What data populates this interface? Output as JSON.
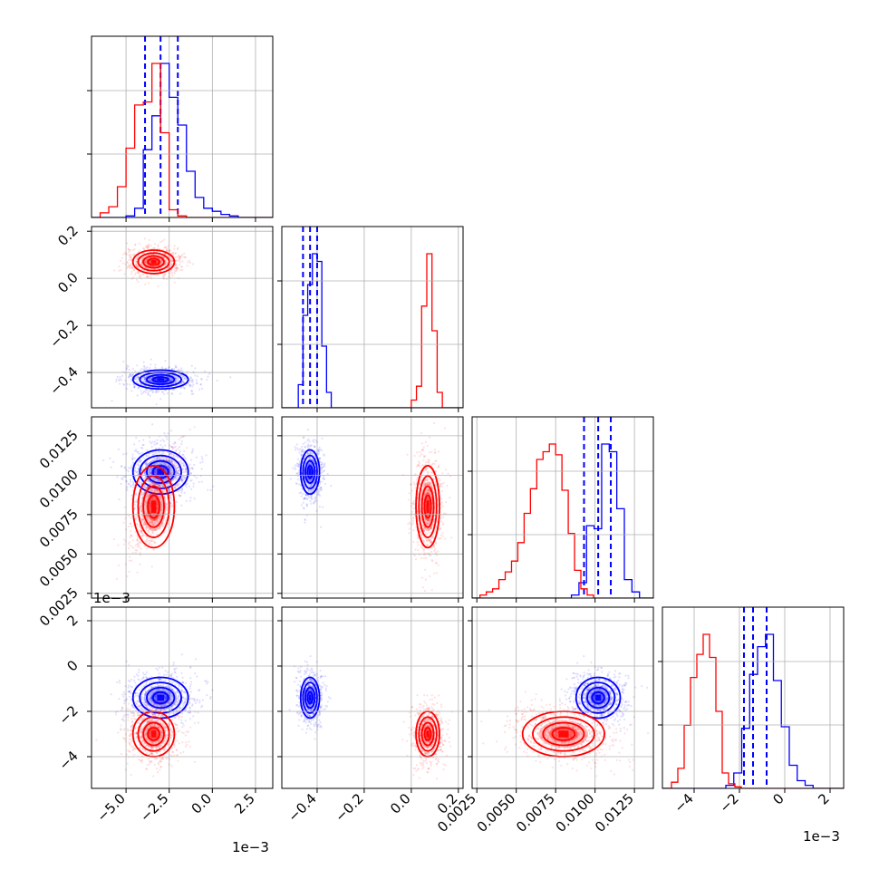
{
  "chart_data": {
    "type": "corner",
    "grid": true,
    "dimensions": [
      "param_1",
      "param_2",
      "param_3",
      "param_4"
    ],
    "offset_labels": [
      "1e−3",
      "1e−3"
    ],
    "axes": {
      "param_1": {
        "lim": [
          -7.0,
          3.5
        ],
        "ticks": [
          -5.0,
          -2.5,
          0.0,
          2.5
        ],
        "tick_labels": [
          "−5.0",
          "−2.5",
          "0.0",
          "2.5"
        ],
        "offset": "1e−3"
      },
      "param_2": {
        "lim": [
          -0.55,
          0.22
        ],
        "ticks": [
          -0.4,
          -0.2,
          0.0,
          0.2
        ],
        "tick_labels": [
          "−0.4",
          "−0.2",
          "0.0",
          "0.2"
        ]
      },
      "param_3": {
        "lim": [
          0.0022,
          0.0137
        ],
        "ticks": [
          0.0025,
          0.005,
          0.0075,
          0.01,
          0.0125
        ],
        "tick_labels": [
          "0.0025",
          "0.0050",
          "0.0075",
          "0.0100",
          "0.0125"
        ]
      },
      "param_4": {
        "lim": [
          -5.4,
          2.6
        ],
        "ticks": [
          -4,
          -2,
          0,
          2
        ],
        "tick_labels": [
          "−4",
          "−2",
          "0",
          "2"
        ],
        "offset": "1e−3"
      }
    },
    "series": [
      {
        "color": "#0000ff",
        "quantiles": {
          "param_1": [
            -3.9,
            -3.0,
            -2.0
          ],
          "param_2": [
            -0.46,
            -0.43,
            -0.4
          ],
          "param_3": [
            0.0093,
            0.0102,
            0.011
          ],
          "param_4": [
            -1.8,
            -1.4,
            -0.8
          ]
        },
        "modes": {
          "param_1": -3.0,
          "param_2": -0.43,
          "param_3": 0.0102,
          "param_4": -1.4
        },
        "hist": {
          "param_1": {
            "start": -7.0,
            "step": 0.5,
            "counts": [
              0.0,
              0.0,
              0.0,
              0.0,
              0.01,
              0.06,
              0.44,
              0.66,
              1.0,
              0.78,
              0.6,
              0.3,
              0.13,
              0.06,
              0.04,
              0.02,
              0.01,
              0.0
            ]
          },
          "param_2": {
            "start": -0.48,
            "step": 0.02,
            "counts": [
              0.15,
              0.6,
              0.8,
              1.0,
              0.95,
              0.4,
              0.1,
              0.0
            ]
          },
          "param_3": {
            "start": 0.0085,
            "step": 0.00048,
            "counts": [
              0.02,
              0.1,
              0.47,
              0.45,
              1.0,
              0.95,
              0.58,
              0.12,
              0.04,
              0.0
            ]
          },
          "param_4": {
            "start": -2.6,
            "step": 0.35,
            "counts": [
              0.02,
              0.1,
              0.39,
              0.74,
              0.92,
              1.0,
              0.7,
              0.4,
              0.15,
              0.05,
              0.02,
              0.0
            ]
          }
        }
      },
      {
        "color": "#ff0000",
        "quantiles": {},
        "modes": {
          "param_1": -3.4,
          "param_2": 0.07,
          "param_3": 0.008,
          "param_4": -3.0
        },
        "hist": {
          "param_1": {
            "start": -7.0,
            "step": 0.5,
            "counts": [
              0.0,
              0.03,
              0.07,
              0.2,
              0.45,
              0.73,
              0.75,
              1.0,
              0.55,
              0.05,
              0.01,
              0.0
            ]
          },
          "param_2": {
            "start": -0.0,
            "step": 0.022,
            "counts": [
              0.05,
              0.14,
              0.66,
              1.0,
              0.5,
              0.1,
              0.0
            ]
          },
          "param_3": {
            "start": 0.0027,
            "step": 0.0004,
            "counts": [
              0.02,
              0.04,
              0.06,
              0.12,
              0.17,
              0.24,
              0.36,
              0.55,
              0.71,
              0.9,
              0.95,
              1.0,
              0.93,
              0.7,
              0.42,
              0.18,
              0.06,
              0.02,
              0.0
            ]
          },
          "param_4": {
            "start": -5.0,
            "step": 0.28,
            "counts": [
              0.04,
              0.13,
              0.41,
              0.72,
              0.87,
              1.0,
              0.85,
              0.5,
              0.1,
              0.03,
              0.01,
              0.0
            ]
          }
        }
      }
    ],
    "pair_blobs": {
      "blue": {
        "param_1": [
          -3.0,
          0.8
        ],
        "param_2": [
          -0.43,
          0.02
        ],
        "param_3": [
          0.0102,
          0.0007
        ],
        "param_4": [
          -1.4,
          0.45
        ]
      },
      "red": {
        "param_1": [
          -3.4,
          0.6
        ],
        "param_2": [
          0.07,
          0.025
        ],
        "param_3": [
          0.008,
          0.0013
        ],
        "param_4": [
          -3.0,
          0.5
        ]
      }
    }
  }
}
